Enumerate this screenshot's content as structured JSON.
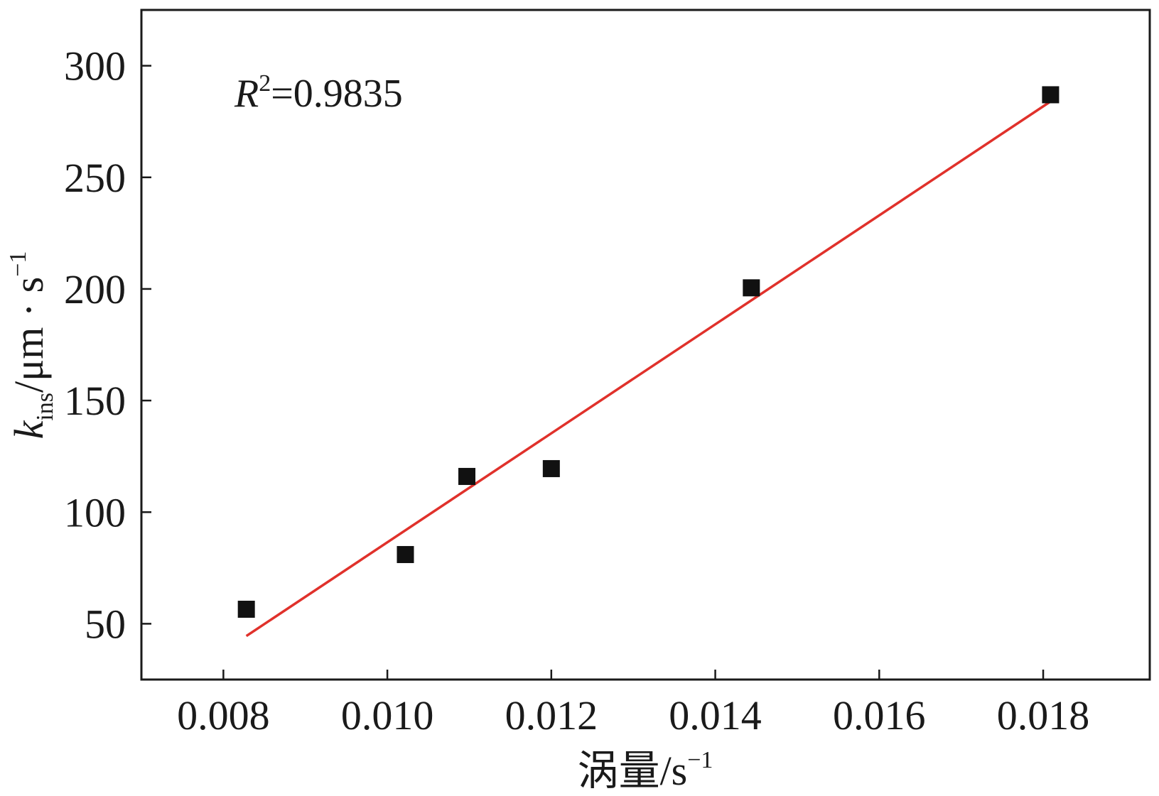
{
  "chart_data": {
    "type": "scatter",
    "xlabel_main": "涡量/s",
    "xlabel_sup": "−1",
    "ylabel_k": "k",
    "ylabel_sub": "ins",
    "ylabel_main": "/μm · s",
    "ylabel_sup": "−1",
    "annotation_r": "R",
    "annotation_sup": "2",
    "annotation_value": "=0.9835",
    "xlim": [
      0.007,
      0.0193
    ],
    "ylim": [
      25,
      325
    ],
    "x_ticks": [
      "0.008",
      "0.010",
      "0.012",
      "0.014",
      "0.016",
      "0.018"
    ],
    "y_ticks": [
      "50",
      "100",
      "150",
      "200",
      "250",
      "300"
    ],
    "x_tick_values": [
      0.008,
      0.01,
      0.012,
      0.014,
      0.016,
      0.018
    ],
    "y_tick_values": [
      50,
      100,
      150,
      200,
      250,
      300
    ],
    "points": [
      {
        "x": 0.00828,
        "y": 56.5
      },
      {
        "x": 0.01022,
        "y": 81
      },
      {
        "x": 0.01097,
        "y": 116
      },
      {
        "x": 0.012,
        "y": 119.5
      },
      {
        "x": 0.01444,
        "y": 200.5
      },
      {
        "x": 0.01809,
        "y": 287
      }
    ],
    "fit_line": [
      {
        "x": 0.00828,
        "y": 44.5
      },
      {
        "x": 0.01809,
        "y": 284
      }
    ],
    "colors": {
      "points": "#111111",
      "fit": "#e0312b",
      "axis": "#1a1a1a"
    }
  }
}
